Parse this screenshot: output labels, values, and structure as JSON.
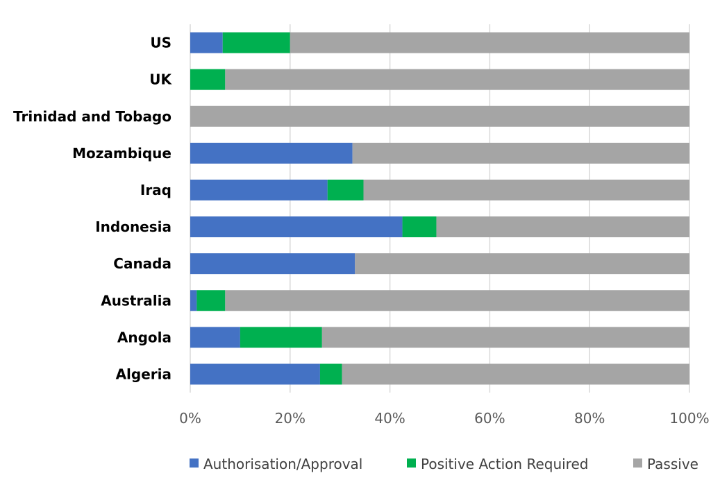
{
  "chart_data": {
    "type": "bar",
    "orientation": "horizontal",
    "stacked": true,
    "categories": [
      "US",
      "UK",
      "Trinidad and Tobago",
      "Mozambique",
      "Iraq",
      "Indonesia",
      "Canada",
      "Australia",
      "Angola",
      "Algeria"
    ],
    "series": [
      {
        "name": "Authorisation/Approval",
        "color": "#4472C4",
        "values": [
          6.5,
          0,
          0,
          32.5,
          27.5,
          42.5,
          33,
          1.3,
          10,
          26
        ]
      },
      {
        "name": "Positive Action Required",
        "color": "#00B050",
        "values": [
          13.5,
          7,
          0,
          0,
          7.2,
          6.8,
          0,
          5.7,
          16.4,
          4.4
        ]
      },
      {
        "name": "Passive",
        "color": "#A5A5A5",
        "values": [
          80,
          93,
          100,
          67.5,
          65.3,
          50.7,
          67,
          93,
          73.6,
          69.6
        ]
      }
    ],
    "xticks": [
      "0%",
      "20%",
      "40%",
      "60%",
      "80%",
      "100%"
    ],
    "xlim": [
      0,
      100
    ],
    "grid": true,
    "legend": "bottom",
    "title": "",
    "xlabel": "",
    "ylabel": ""
  }
}
